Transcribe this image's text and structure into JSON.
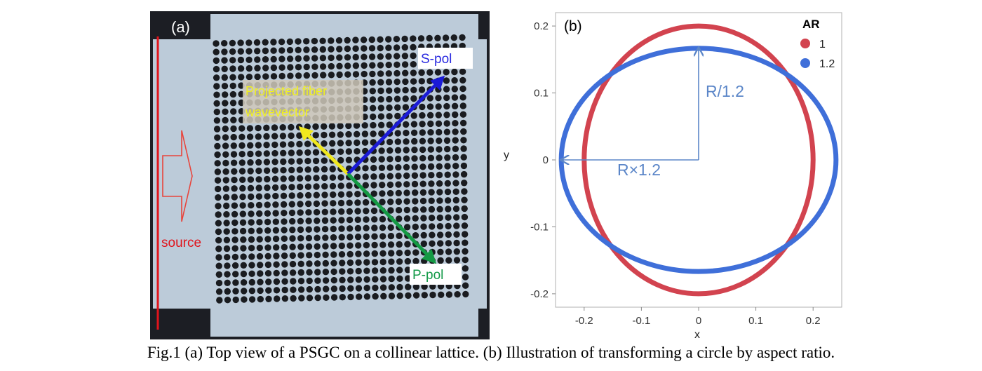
{
  "panel_a": {
    "label": "(a)",
    "source_label": "source",
    "fiber_label_line1": "Projected fiber",
    "fiber_label_line2": "wavevector",
    "s_pol_label": "S-pol",
    "p_pol_label": "P-pol",
    "colors": {
      "background": "#bccbd9",
      "hole": "#1a1c20",
      "frame": "#1c1e24",
      "source_line": "#e0141c",
      "source_arrow": "#e8453c",
      "fiber_arrow": "#f0e81e",
      "fiber_text": "#f0f020",
      "s_pol": "#1b1bd6",
      "p_pol": "#149a44",
      "s_text": "#2a2ae0",
      "p_text": "#139a48"
    }
  },
  "panel_b": {
    "label": "(b)",
    "r_vertical_label": "R/1.2",
    "r_horizontal_label": "R×1.2",
    "colors": {
      "annotation": "#5b86c8"
    }
  },
  "chart_data": {
    "type": "line",
    "title": "",
    "xlabel": "x",
    "ylabel": "y",
    "xlim": [
      -0.25,
      0.25
    ],
    "ylim": [
      -0.22,
      0.22
    ],
    "x_ticks": [
      "-0.2",
      "-0.1",
      "0",
      "0.1",
      "0.2"
    ],
    "y_ticks": [
      "0.2",
      "0.1",
      "0",
      "-0.1",
      "-0.2"
    ],
    "legend_title": "AR",
    "legend_position": "top-right",
    "series": [
      {
        "name": "1",
        "shape": "ellipse",
        "center": [
          0,
          0
        ],
        "semi_axis_x": 0.2,
        "semi_axis_y": 0.2,
        "color": "#d2434f"
      },
      {
        "name": "1.2",
        "shape": "ellipse",
        "center": [
          0,
          0
        ],
        "semi_axis_x": 0.24,
        "semi_axis_y": 0.1667,
        "color": "#3f6fd9"
      }
    ]
  },
  "caption": "Fig.1 (a) Top view of a PSGC on a collinear lattice. (b) Illustration of transforming a circle by aspect ratio."
}
